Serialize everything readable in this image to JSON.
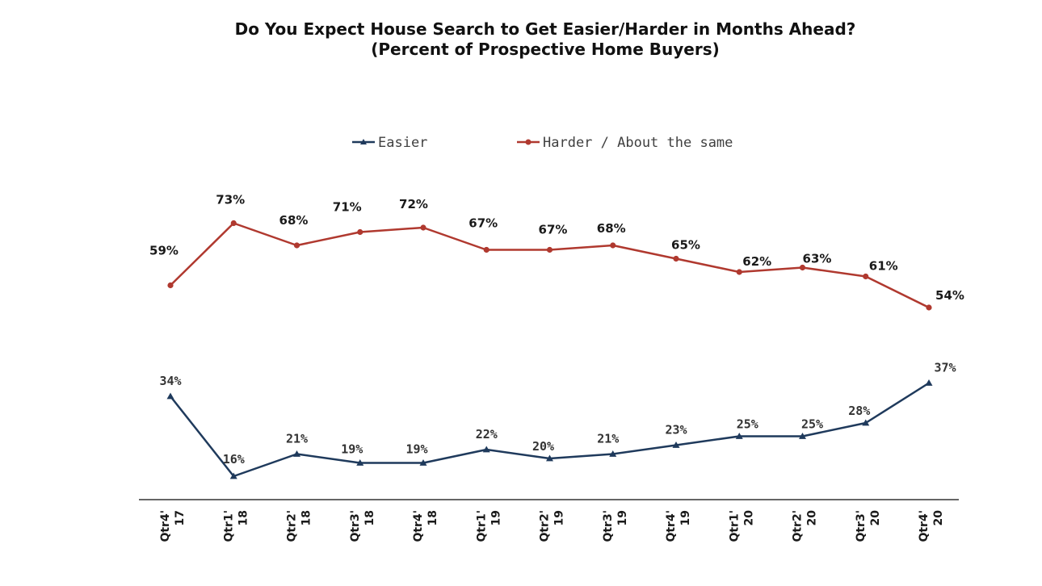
{
  "chart_data": {
    "type": "line",
    "title_line1": "Do You Expect House Search to Get Easier/Harder in Months Ahead?",
    "title_line2": "(Percent of Prospective Home Buyers)",
    "categories": [
      [
        "Qtr4'",
        "17"
      ],
      [
        "Qtr1'",
        "18"
      ],
      [
        "Qtr2'",
        "18"
      ],
      [
        "Qtr3'",
        "18"
      ],
      [
        "Qtr4'",
        "18"
      ],
      [
        "Qtr1'",
        "19"
      ],
      [
        "Qtr2'",
        "19"
      ],
      [
        "Qtr3'",
        "19"
      ],
      [
        "Qtr4'",
        "19"
      ],
      [
        "Qtr1'",
        "20"
      ],
      [
        "Qtr2'",
        "20"
      ],
      [
        "Qtr3'",
        "20"
      ],
      [
        "Qtr4'",
        "20"
      ]
    ],
    "series": [
      {
        "name": "Easier",
        "color": "#1f3a5c",
        "marker": "triangle",
        "values": [
          34,
          16,
          21,
          19,
          19,
          22,
          20,
          21,
          23,
          25,
          25,
          28,
          37
        ],
        "labels": [
          "34%",
          "16%",
          "21%",
          "19%",
          "19%",
          "22%",
          "20%",
          "21%",
          "23%",
          "25%",
          "25%",
          "28%",
          "37%"
        ]
      },
      {
        "name": "Harder / About the same",
        "color": "#b0392f",
        "marker": "circle",
        "values": [
          59,
          73,
          68,
          71,
          72,
          67,
          67,
          68,
          65,
          62,
          63,
          61,
          54
        ],
        "labels": [
          "59%",
          "73%",
          "68%",
          "71%",
          "72%",
          "67%",
          "67%",
          "68%",
          "65%",
          "62%",
          "63%",
          "61%",
          "54%"
        ]
      }
    ],
    "ylim": [
      0,
      100
    ],
    "grid": false,
    "legend_position": "top"
  }
}
